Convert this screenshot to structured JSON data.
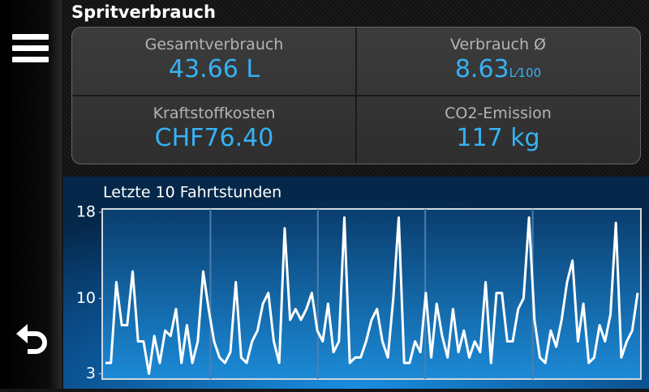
{
  "header": {
    "title": "Spritverbrauch"
  },
  "stats": [
    {
      "label": "Gesamtverbrauch",
      "value": "43.66 L"
    },
    {
      "label": "Verbrauch Ø",
      "value": "8.63",
      "unit": "L⁄100"
    },
    {
      "label": "Kraftstoffkosten",
      "value": "CHF76.40"
    },
    {
      "label": "CO2-Emission",
      "value": "117 kg"
    }
  ],
  "chart_data": {
    "type": "line",
    "title": "Letzte 10 Fahrtstunden",
    "color": "#ffffff",
    "values": [
      4,
      4,
      11.5,
      7.5,
      7.5,
      12.5,
      6,
      6,
      3,
      6.5,
      4,
      7,
      6.5,
      9,
      4,
      7.5,
      4,
      6,
      12.5,
      9,
      6,
      4.5,
      4,
      5,
      11.5,
      4.5,
      4,
      6,
      7,
      9.5,
      10.5,
      6,
      4,
      16.5,
      8,
      9,
      8,
      9,
      10.5,
      7,
      6,
      9.5,
      5,
      6,
      17.5,
      4,
      4.5,
      4.5,
      6,
      8,
      9,
      6,
      4.5,
      10,
      17.5,
      4,
      4,
      6,
      5,
      10.5,
      4.5,
      9.5,
      6.5,
      4.5,
      9,
      5,
      7,
      4.5,
      6,
      5,
      11.5,
      4,
      10.5,
      10.5,
      6,
      6,
      9,
      10,
      17.5,
      8,
      4.5,
      4,
      7,
      5.5,
      8,
      11.5,
      13.5,
      6,
      9.5,
      4,
      4.5,
      7.5,
      6,
      8.5,
      17,
      4.5,
      6,
      7,
      10.5
    ],
    "ylim": [
      2.5,
      18.3
    ],
    "yticks": [
      3,
      10,
      18
    ]
  }
}
